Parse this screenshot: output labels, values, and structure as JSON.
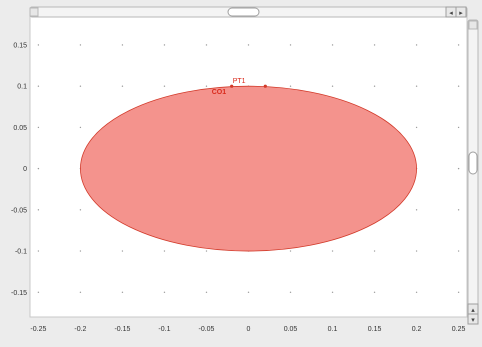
{
  "x_ticks": [
    "-0.25",
    "-0.2",
    "-0.15",
    "-0.1",
    "-0.05",
    "0",
    "0.05",
    "0.1",
    "0.15",
    "0.2",
    "0.25"
  ],
  "y_ticks": [
    "0.15",
    "0.1",
    "0.05",
    "0",
    "-0.05",
    "-0.1",
    "-0.15"
  ],
  "ellipse": {
    "cx": 0,
    "cy": 0,
    "rx": 0.2,
    "ry": 0.1
  },
  "points": [
    {
      "label": "PT1",
      "x": -0.02,
      "y": 0.1
    },
    {
      "label": "",
      "x": 0.02,
      "y": 0.1
    }
  ],
  "labels": {
    "pt1": "PT1",
    "co1": "CO1"
  },
  "colors": {
    "fill": "#f4938d",
    "stroke": "#d23a2a",
    "label": "#d92a1c",
    "grid_dot": "#9a9a9a"
  },
  "x_range": [
    -0.26,
    0.26
  ],
  "y_range": [
    -0.18,
    0.19
  ],
  "icons": {
    "scroll_left": "◂",
    "scroll_right": "▸",
    "scroll_up": "▴",
    "scroll_down": "▾"
  }
}
